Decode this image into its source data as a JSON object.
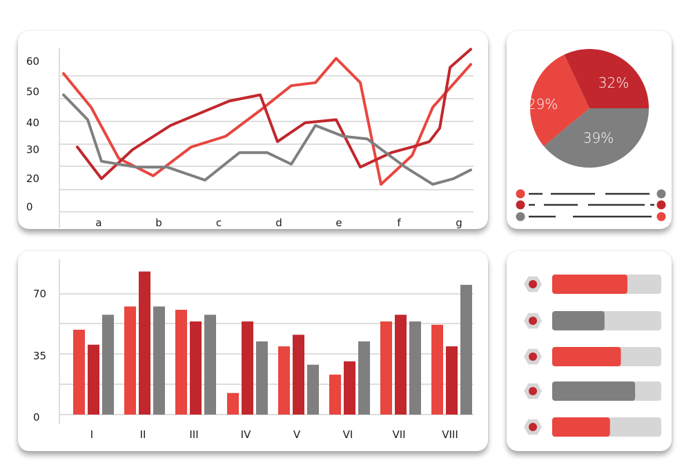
{
  "colors": {
    "red": "#e8463f",
    "dark_red": "#c1272d",
    "gray": "#7f7f7f",
    "light_gray": "#d6d6d6",
    "grid": "#dddddd"
  },
  "chart_data": [
    {
      "type": "line",
      "categories": [
        "a",
        "b",
        "c",
        "d",
        "e",
        "f",
        "g"
      ],
      "y_tick_labels": [
        "0",
        "20",
        "30",
        "40",
        "50",
        "60"
      ],
      "series": [
        {
          "color": "#e8463f",
          "x": [
            0,
            0.4,
            0.8,
            1.3,
            1.85,
            2.35,
            2.85,
            3.3,
            3.65,
            3.95,
            4.3,
            4.6,
            5.05,
            5.35,
            5.9
          ],
          "values": [
            56,
            45,
            27,
            21,
            31,
            35,
            44,
            52,
            53,
            61,
            53,
            16,
            28,
            45,
            59
          ]
        },
        {
          "color": "#c1272d",
          "x": [
            0.2,
            0.55,
            1.0,
            1.55,
            2.4,
            2.85,
            3.1,
            3.5,
            3.95,
            4.3,
            4.75,
            5.05,
            5.3,
            5.45,
            5.6,
            5.9
          ],
          "values": [
            31,
            20,
            30,
            39,
            47,
            49,
            33,
            40,
            41,
            24,
            29,
            31,
            33,
            38,
            58,
            64
          ]
        },
        {
          "color": "#7f7f7f",
          "x": [
            0,
            0.35,
            0.55,
            1.05,
            1.5,
            2.05,
            2.55,
            2.95,
            3.3,
            3.65,
            4.05,
            4.4,
            4.95,
            5.35,
            5.65,
            5.9
          ],
          "values": [
            49,
            41,
            26,
            24,
            24,
            19,
            29,
            29,
            25,
            39,
            35,
            34,
            24,
            16,
            20,
            23
          ]
        }
      ],
      "grid": true
    },
    {
      "type": "pie",
      "slices": [
        {
          "label": "32%",
          "value": 32,
          "color": "#c1272d"
        },
        {
          "label": "39%",
          "value": 39,
          "color": "#7f7f7f"
        },
        {
          "label": "29%",
          "value": 29,
          "color": "#e8463f"
        }
      ],
      "legend_rows": [
        {
          "left_color": "#e8463f",
          "right_color": "#7f7f7f"
        },
        {
          "left_color": "#c1272d",
          "right_color": "#c1272d"
        },
        {
          "left_color": "#7f7f7f",
          "right_color": "#e8463f"
        }
      ]
    },
    {
      "type": "bar",
      "categories": [
        "I",
        "II",
        "III",
        "IV",
        "V",
        "VI",
        "VII",
        "VIII"
      ],
      "y_tick_labels": [
        "0",
        "35",
        "70"
      ],
      "ylim": [
        0,
        90
      ],
      "grid": true,
      "series": [
        {
          "color": "#e8463f",
          "values": [
            51,
            65,
            63,
            13,
            41,
            24,
            56,
            54
          ]
        },
        {
          "color": "#c1272d",
          "values": [
            42,
            86,
            56,
            56,
            48,
            32,
            60,
            41
          ]
        },
        {
          "color": "#7f7f7f",
          "values": [
            60,
            65,
            60,
            44,
            30,
            44,
            56,
            78
          ]
        }
      ]
    },
    {
      "type": "bar",
      "orientation": "horizontal",
      "items": [
        {
          "value": 0.69,
          "color": "#e8463f"
        },
        {
          "value": 0.48,
          "color": "#7f7f7f"
        },
        {
          "value": 0.63,
          "color": "#e8463f"
        },
        {
          "value": 0.76,
          "color": "#7f7f7f"
        },
        {
          "value": 0.53,
          "color": "#e8463f"
        }
      ]
    }
  ]
}
